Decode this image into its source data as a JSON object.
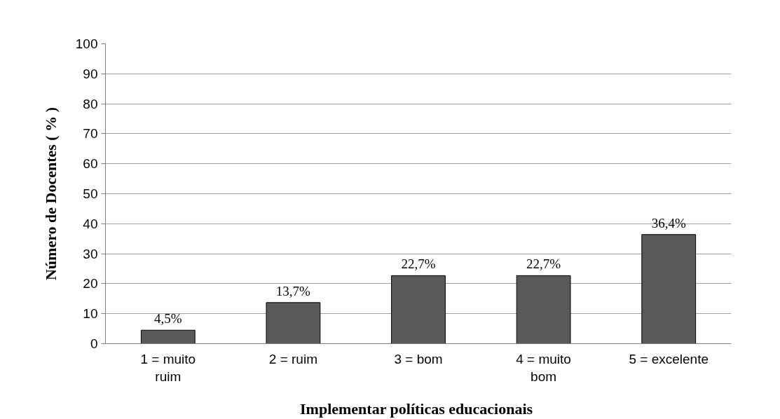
{
  "chart_data": {
    "type": "bar",
    "xlabel": "Implementar políticas  educacionais",
    "ylabel": "Número de Docentes ( % )",
    "categories": [
      "1 = muito\nruim",
      "2 = ruim",
      "3 = bom",
      "4 = muito\nbom",
      "5 = excelente"
    ],
    "values": [
      4.5,
      13.7,
      22.7,
      22.7,
      36.4
    ],
    "value_labels": [
      "4,5%",
      "13,7%",
      "22,7%",
      "22,7%",
      "36,4%"
    ],
    "color": "#595959",
    "ylim": [
      0,
      100
    ],
    "yticks": [
      0,
      10,
      20,
      30,
      40,
      50,
      60,
      70,
      80,
      90,
      100
    ],
    "grid": "y"
  }
}
